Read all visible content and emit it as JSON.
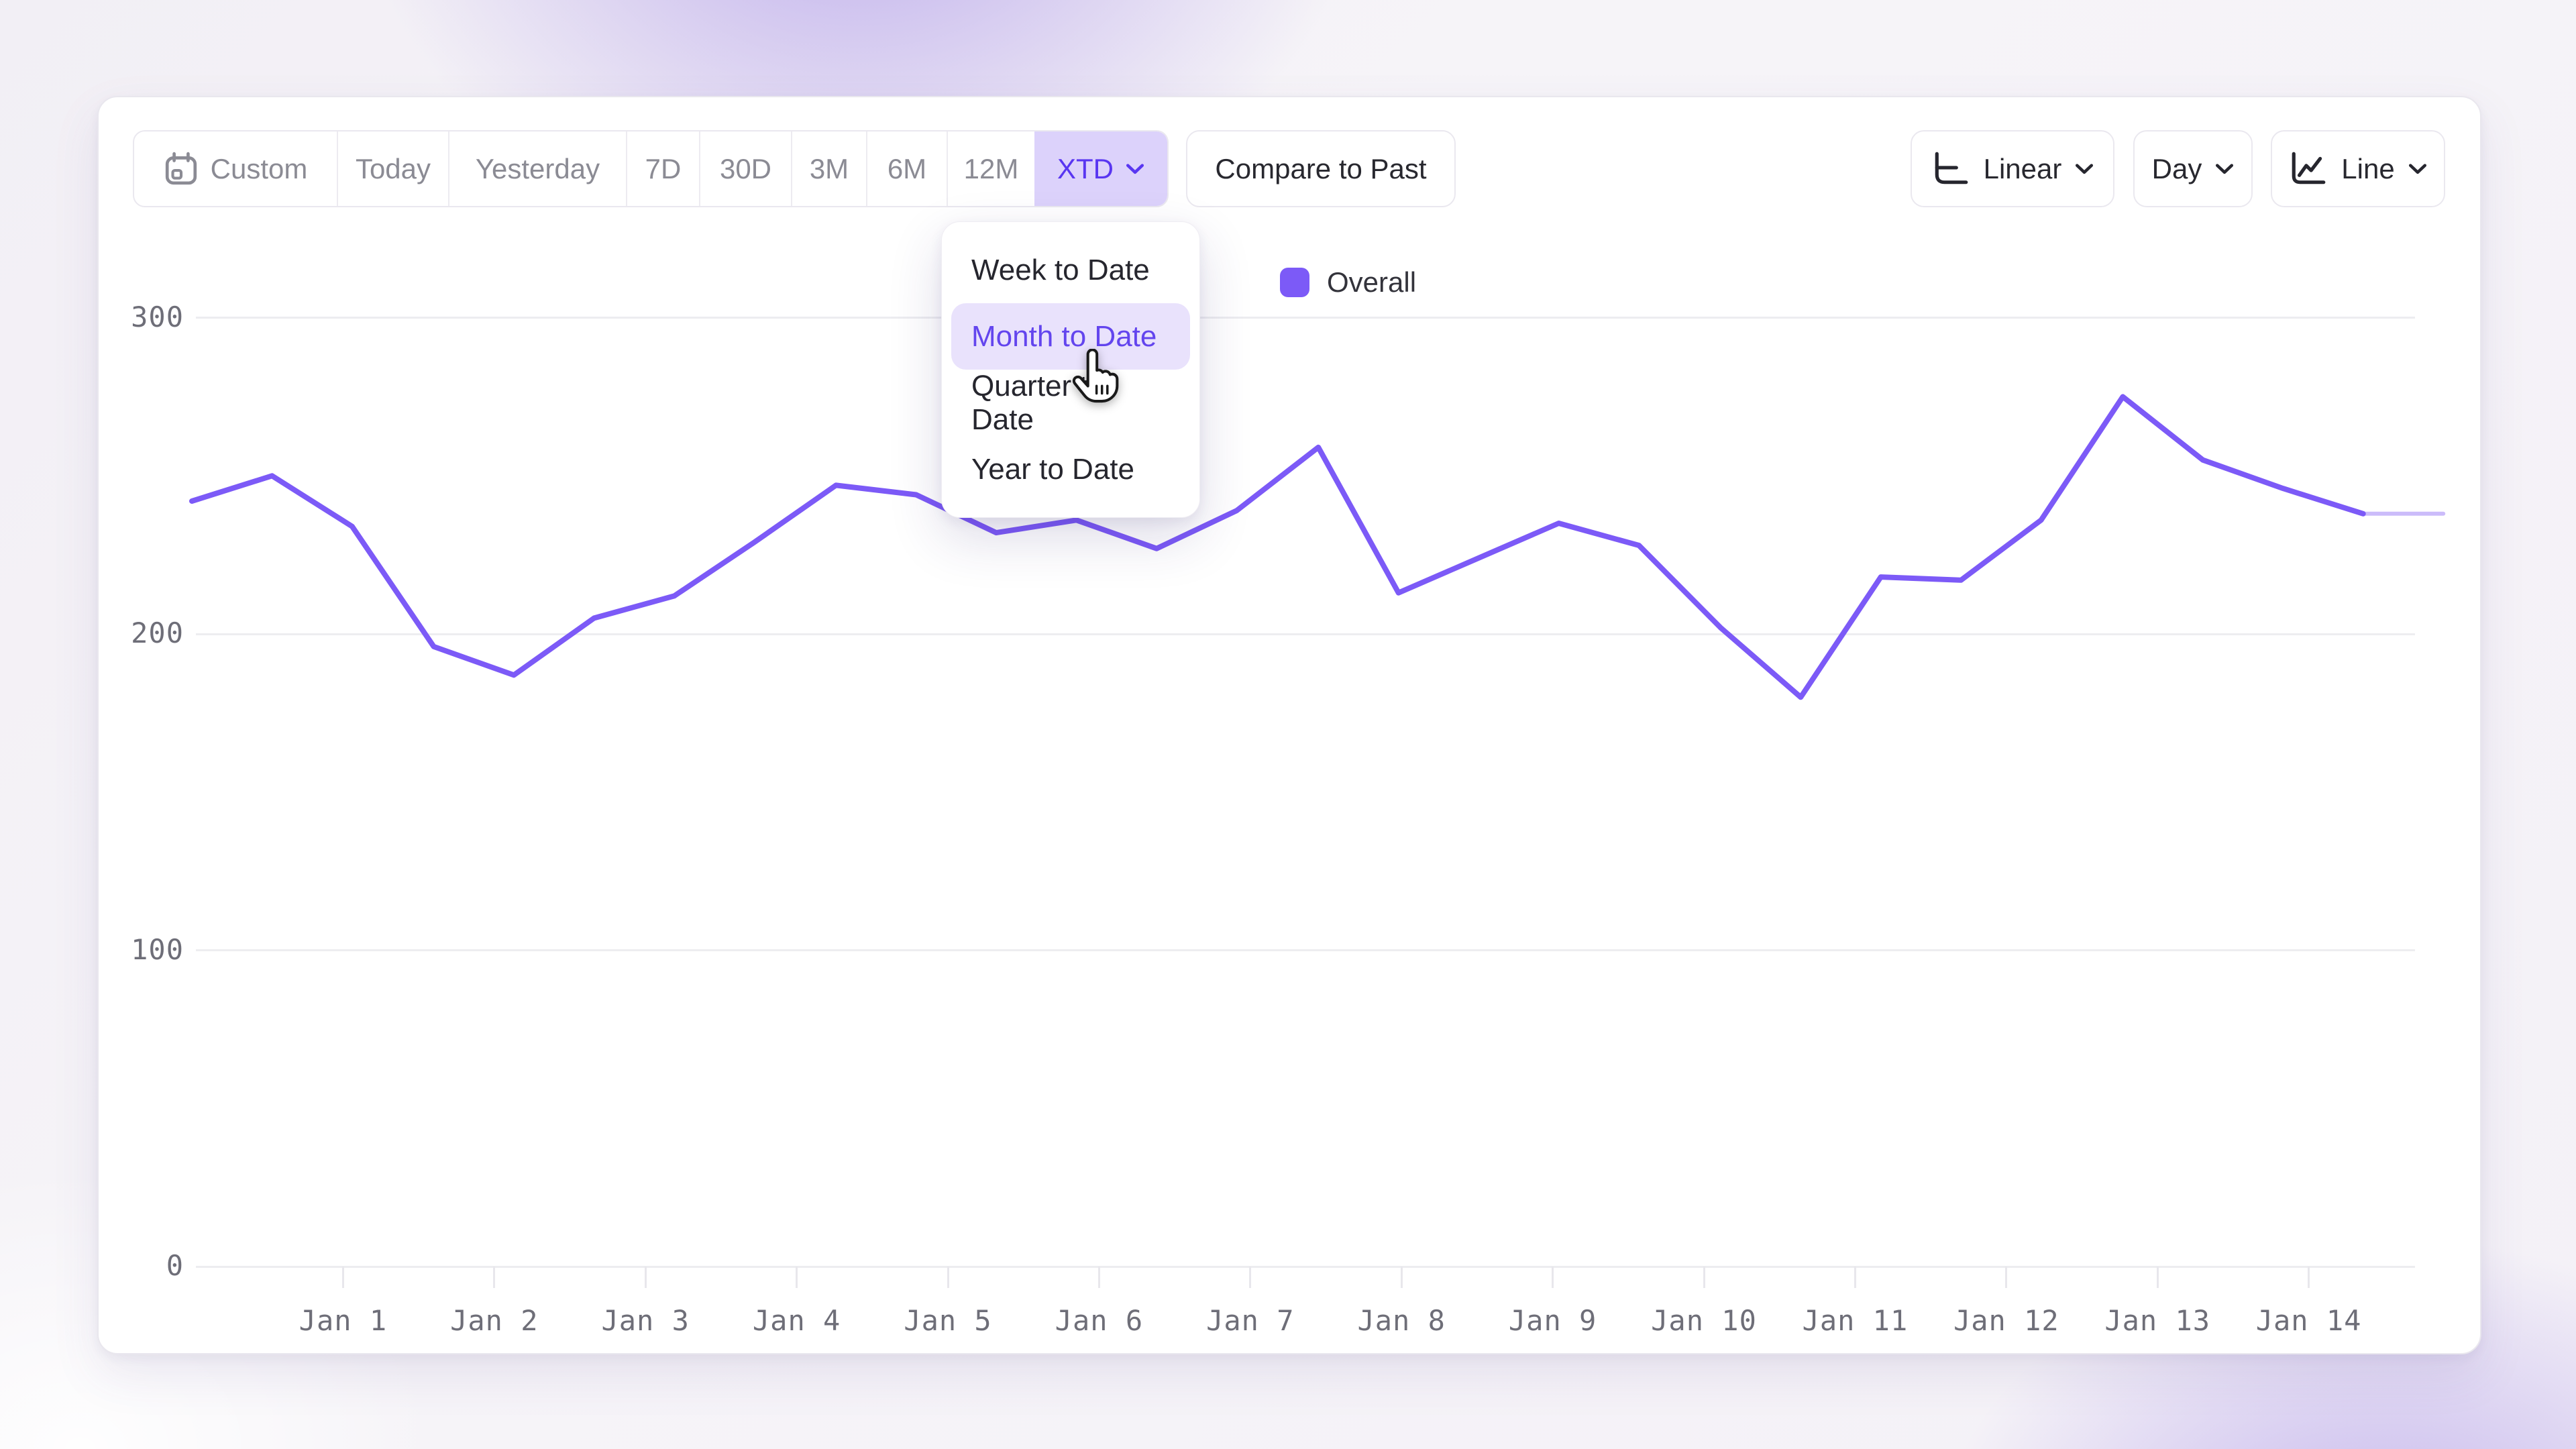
{
  "toolbar": {
    "segments": [
      {
        "id": "custom",
        "label": "Custom",
        "icon": "calendar",
        "selected": false
      },
      {
        "id": "today",
        "label": "Today",
        "selected": false
      },
      {
        "id": "yesterday",
        "label": "Yesterday",
        "selected": false
      },
      {
        "id": "7d",
        "label": "7D",
        "selected": false
      },
      {
        "id": "30d",
        "label": "30D",
        "selected": false
      },
      {
        "id": "3m",
        "label": "3M",
        "selected": false
      },
      {
        "id": "6m",
        "label": "6M",
        "selected": false
      },
      {
        "id": "12m",
        "label": "12M",
        "selected": false
      },
      {
        "id": "xtd",
        "label": "XTD",
        "selected": true,
        "has_chevron": true
      }
    ],
    "compare_label": "Compare to Past"
  },
  "view_controls": [
    {
      "id": "scale",
      "label": "Linear",
      "icon": "linear-scale",
      "has_chevron": true
    },
    {
      "id": "granularity",
      "label": "Day",
      "icon": "",
      "has_chevron": true
    },
    {
      "id": "chart-type",
      "label": "Line",
      "icon": "line-chart",
      "has_chevron": true
    }
  ],
  "dropdown": {
    "items": [
      {
        "label": "Week to Date",
        "selected": false
      },
      {
        "label": "Month to Date",
        "selected": true
      },
      {
        "label": "Quarter to Date",
        "selected": false
      },
      {
        "label": "Year to Date",
        "selected": false
      }
    ]
  },
  "legend": {
    "label": "Overall",
    "swatch_color": "#7c5af7"
  },
  "colors": {
    "accent": "#5936f1",
    "line": "#7c5af7",
    "line_incomplete": "#c5b5f9",
    "selected_chip_bg": "#dcd2fb",
    "dropdown_highlight_bg": "#e9e2fc",
    "dropdown_highlight_text": "#6345ee"
  },
  "chart_data": {
    "type": "line",
    "title": "",
    "xlabel": "",
    "ylabel": "",
    "grid": "horizontal",
    "legend_position": "top-center",
    "x_ticks": [
      "Jan 1",
      "Jan 2",
      "Jan 3",
      "Jan 4",
      "Jan 5",
      "Jan 6",
      "Jan 7",
      "Jan 8",
      "Jan 9",
      "Jan 10",
      "Jan 11",
      "Jan 12",
      "Jan 13",
      "Jan 14"
    ],
    "y_ticks": [
      300,
      200,
      100,
      0
    ],
    "ylim": [
      0,
      310
    ],
    "x_domain_days": [
      0,
      14.89
    ],
    "series": [
      {
        "name": "Overall",
        "color": "#7c5af7",
        "incomplete_tail_points": 1,
        "incomplete_tail_color": "#c5b5f9",
        "points": [
          {
            "day": 0.0,
            "value": 242
          },
          {
            "day": 0.53,
            "value": 250
          },
          {
            "day": 1.06,
            "value": 234
          },
          {
            "day": 1.6,
            "value": 196
          },
          {
            "day": 2.13,
            "value": 187
          },
          {
            "day": 2.66,
            "value": 205
          },
          {
            "day": 3.19,
            "value": 212
          },
          {
            "day": 3.72,
            "value": 229
          },
          {
            "day": 4.26,
            "value": 247
          },
          {
            "day": 4.79,
            "value": 244
          },
          {
            "day": 5.32,
            "value": 232
          },
          {
            "day": 5.85,
            "value": 236
          },
          {
            "day": 6.38,
            "value": 227
          },
          {
            "day": 6.91,
            "value": 239
          },
          {
            "day": 7.45,
            "value": 259
          },
          {
            "day": 7.98,
            "value": 213
          },
          {
            "day": 8.51,
            "value": 224
          },
          {
            "day": 9.04,
            "value": 235
          },
          {
            "day": 9.57,
            "value": 228
          },
          {
            "day": 10.11,
            "value": 202
          },
          {
            "day": 10.64,
            "value": 180
          },
          {
            "day": 11.17,
            "value": 218
          },
          {
            "day": 11.7,
            "value": 217
          },
          {
            "day": 12.23,
            "value": 236
          },
          {
            "day": 12.77,
            "value": 275
          },
          {
            "day": 13.3,
            "value": 255
          },
          {
            "day": 13.83,
            "value": 246
          },
          {
            "day": 14.36,
            "value": 238
          },
          {
            "day": 14.89,
            "value": 238
          }
        ]
      }
    ]
  }
}
